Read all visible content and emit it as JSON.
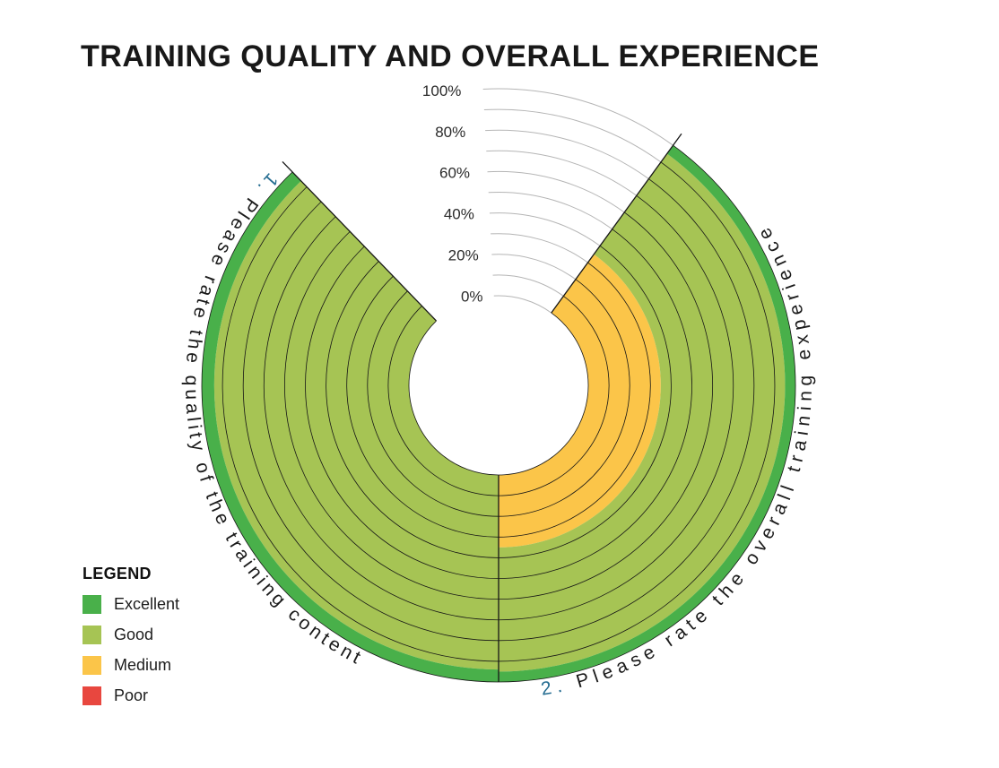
{
  "chart_data": {
    "type": "bar",
    "variant": "radial-stacked-percent",
    "title": "TRAINING QUALITY AND OVERALL EXPERIENCE",
    "categories": [
      {
        "number": "1.",
        "label": "Please rate the quality of the training content"
      },
      {
        "number": "2.",
        "label": "Please rate the overall training experience"
      }
    ],
    "series": [
      {
        "name": "Poor",
        "color": "#e8473f",
        "values": [
          0,
          0
        ]
      },
      {
        "name": "Medium",
        "color": "#fbc549",
        "values": [
          0,
          35
        ]
      },
      {
        "name": "Good",
        "color": "#a6c454",
        "values": [
          94,
          60
        ]
      },
      {
        "name": "Excellent",
        "color": "#49b04a",
        "values": [
          6,
          5
        ]
      }
    ],
    "stack_order_from_center": [
      "Poor",
      "Medium",
      "Good",
      "Excellent"
    ],
    "axis": {
      "min": 0,
      "max": 100,
      "tick_step": 20,
      "grid_step": 10,
      "tick_labels": [
        "0%",
        "20%",
        "40%",
        "60%",
        "80%",
        "100%"
      ]
    },
    "legend": {
      "title": "LEGEND",
      "items": [
        {
          "label": "Excellent",
          "color": "#49b04a"
        },
        {
          "label": "Good",
          "color": "#a6c454"
        },
        {
          "label": "Medium",
          "color": "#fbc549"
        },
        {
          "label": "Poor",
          "color": "#e8473f"
        }
      ]
    },
    "category_number_color": "#256d91"
  }
}
